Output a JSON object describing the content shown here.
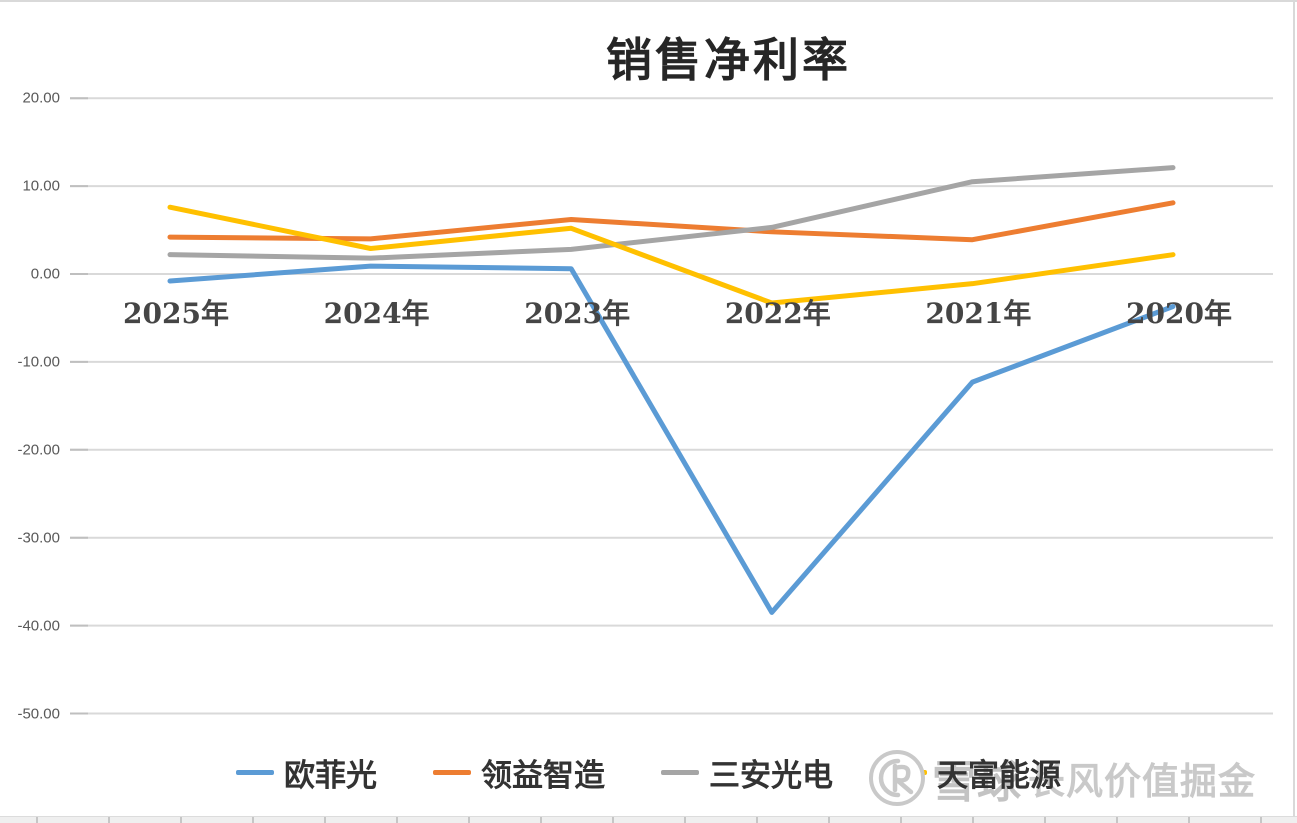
{
  "chart_data": {
    "type": "line",
    "title": "销售净利率",
    "categories": [
      "2025年",
      "2024年",
      "2023年",
      "2022年",
      "2021年",
      "2020年"
    ],
    "series": [
      {
        "name": "欧菲光",
        "color": "#5B9BD5",
        "values": [
          -0.8,
          0.9,
          0.6,
          -38.5,
          -12.3,
          -3.7
        ]
      },
      {
        "name": "领益智造",
        "color": "#ED7D31",
        "values": [
          4.2,
          4.0,
          6.2,
          4.8,
          3.9,
          8.1
        ]
      },
      {
        "name": "三安光电",
        "color": "#A5A5A5",
        "values": [
          2.2,
          1.8,
          2.8,
          5.3,
          10.5,
          12.1
        ]
      },
      {
        "name": "天富能源",
        "color": "#FFC000",
        "values": [
          7.6,
          2.9,
          5.2,
          -3.3,
          -1.1,
          2.2
        ]
      }
    ],
    "yaxis": {
      "ticks": [
        20,
        10,
        0,
        -10,
        -20,
        -30,
        -40,
        -50
      ],
      "tick_labels": [
        "20.00",
        "10.00",
        "0.00",
        "-10.00",
        "-20.00",
        "-30.00",
        "-40.00",
        "-50.00"
      ],
      "ylim": [
        -50,
        20
      ]
    },
    "grid": true,
    "gridline_color": "#D9D9D9",
    "legend_position": "bottom"
  },
  "watermark": {
    "logo": "xueqiu-snowball-logo",
    "brand": "雪球",
    "text": "长风价值掘金"
  }
}
